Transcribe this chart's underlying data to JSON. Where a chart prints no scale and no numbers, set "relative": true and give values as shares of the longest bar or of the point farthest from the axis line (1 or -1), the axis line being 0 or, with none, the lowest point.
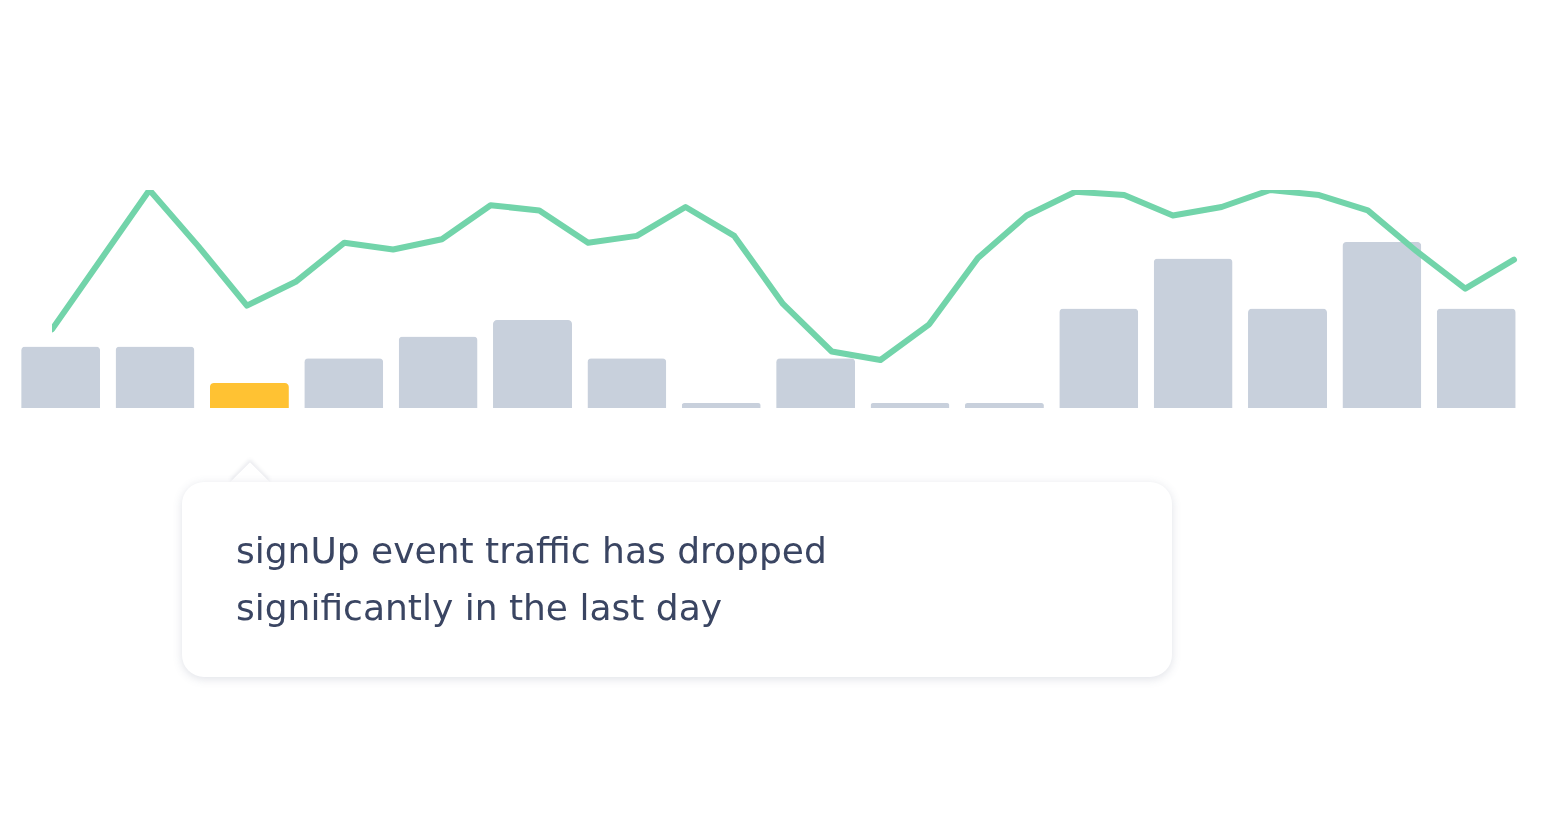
{
  "chart_data": [
    {
      "type": "bar",
      "relative": true,
      "categories": [
        null,
        null,
        null,
        null,
        null,
        null,
        null,
        null,
        null,
        null,
        null,
        null,
        null,
        null,
        null,
        null
      ],
      "colors": [
        "#c8d0dc",
        "#c8d0dc",
        "#ffc233",
        "#c8d0dc",
        "#c8d0dc",
        "#c8d0dc",
        "#c8d0dc",
        "#c8d0dc",
        "#c8d0dc",
        "#c8d0dc",
        "#c8d0dc",
        "#c8d0dc",
        "#c8d0dc",
        "#c8d0dc",
        "#c8d0dc",
        "#c8d0dc"
      ],
      "values": [
        0.37,
        0.37,
        0.15,
        0.3,
        0.43,
        0.53,
        0.3,
        0.03,
        0.3,
        0.03,
        0.03,
        0.6,
        0.9,
        0.6,
        1.0,
        0.6
      ],
      "annotations": [
        "signUp event traffic has dropped significantly in the last day"
      ]
    },
    {
      "type": "line",
      "relative": true,
      "categories": [
        null,
        null,
        null,
        null,
        null,
        null,
        null,
        null,
        null,
        null,
        null,
        null,
        null,
        null,
        null,
        null,
        null,
        null,
        null,
        null,
        null,
        null,
        null,
        null,
        null,
        null,
        null,
        null,
        null,
        null,
        null
      ],
      "series": [
        {
          "color": "#72d4aa",
          "values": [
            0.18,
            0.59,
            1.0,
            0.67,
            0.32,
            0.46,
            0.69,
            0.65,
            0.71,
            0.91,
            0.88,
            0.69,
            0.73,
            0.9,
            0.73,
            0.33,
            0.05,
            0.0,
            0.21,
            0.6,
            0.85,
            0.99,
            0.97,
            0.85,
            0.9,
            1.0,
            0.97,
            0.88,
            0.64,
            0.42,
            0.59
          ]
        }
      ]
    }
  ]
}
